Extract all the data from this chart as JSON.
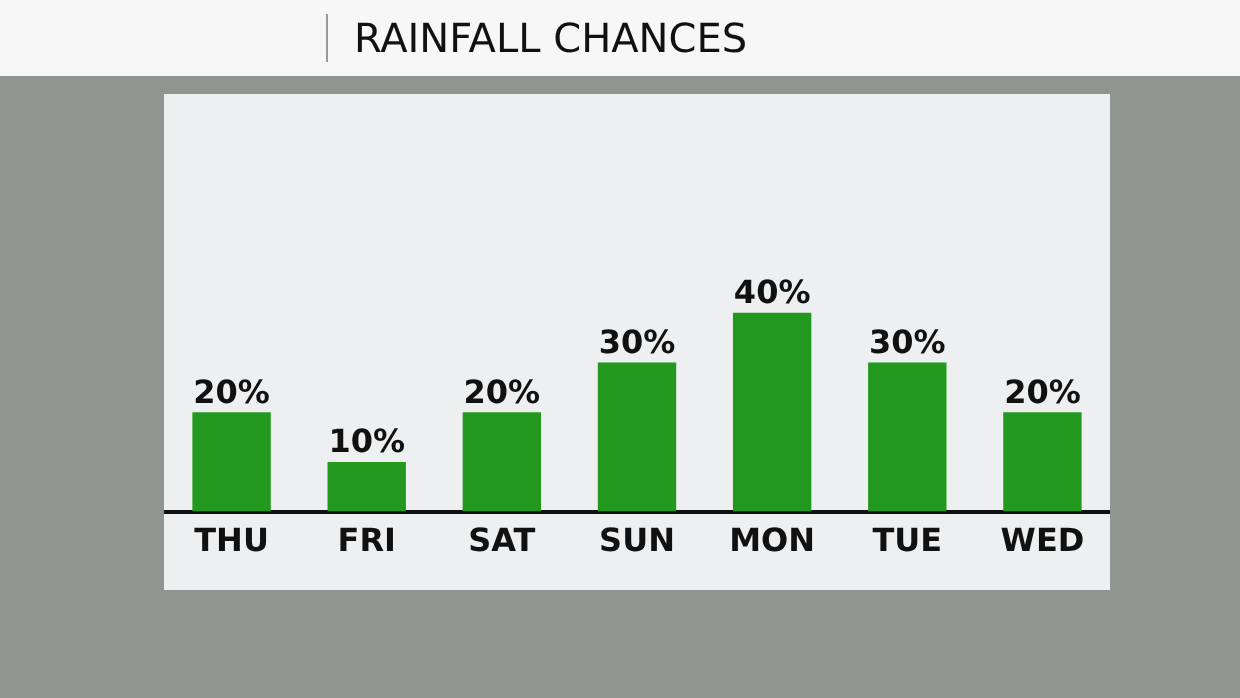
{
  "chart_data": {
    "type": "bar",
    "title": "RAINFALL CHANCES",
    "categories": [
      "THU",
      "FRI",
      "SAT",
      "SUN",
      "MON",
      "TUE",
      "WED"
    ],
    "values": [
      20,
      10,
      20,
      30,
      40,
      30,
      20
    ],
    "value_labels": [
      "20%",
      "10%",
      "20%",
      "30%",
      "40%",
      "30%",
      "20%"
    ],
    "color": "#22981e",
    "grid": false,
    "legend": false
  }
}
